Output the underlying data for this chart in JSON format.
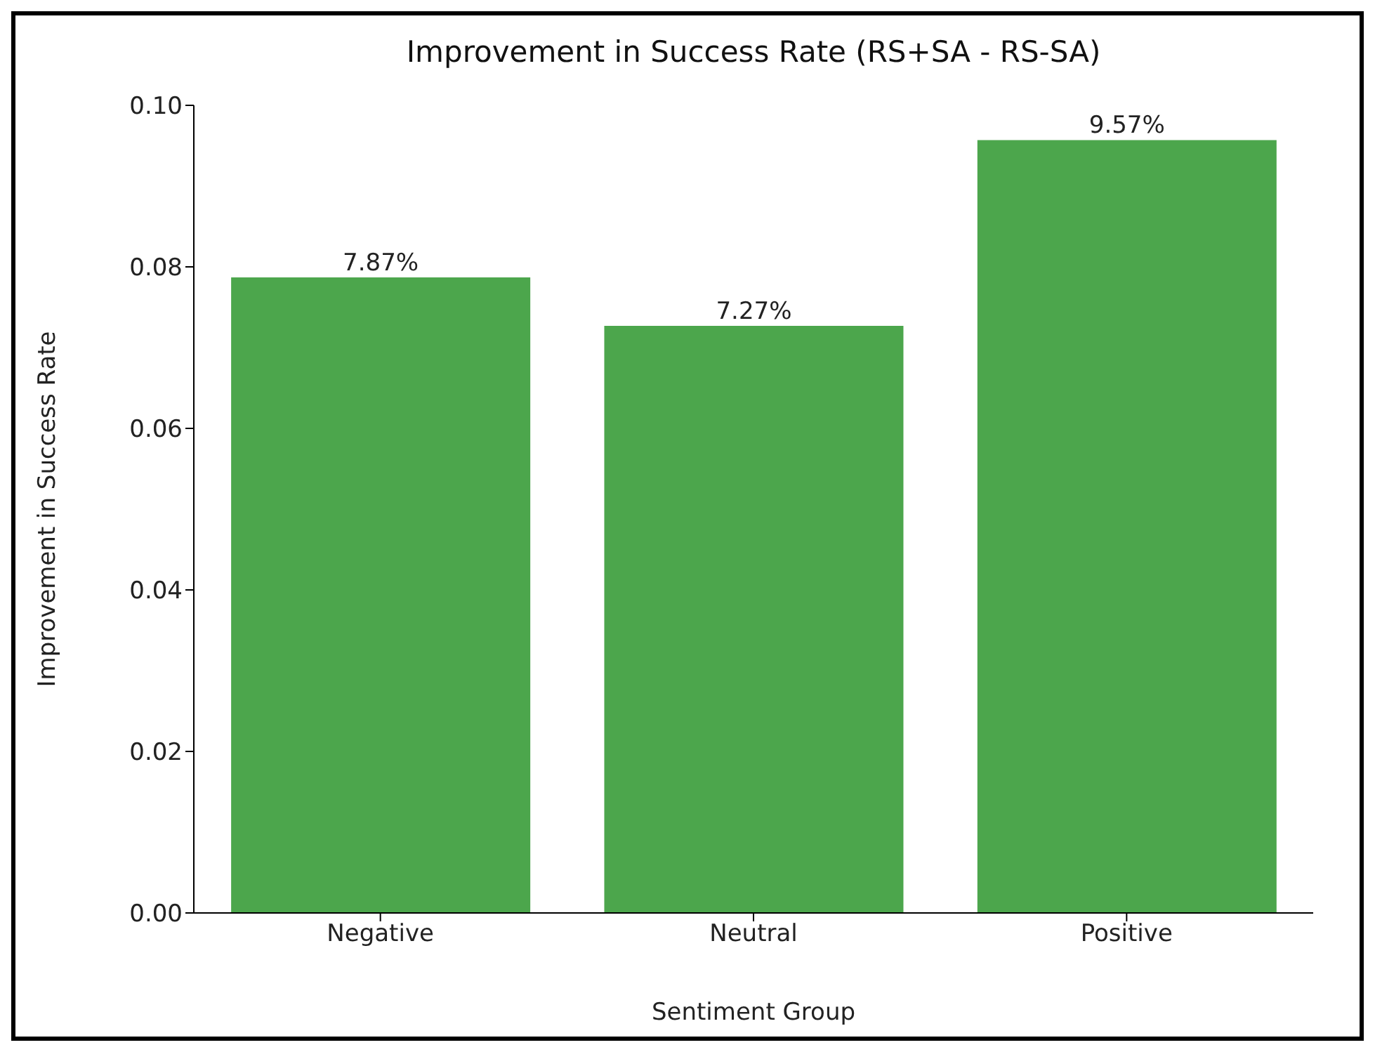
{
  "chart_data": {
    "type": "bar",
    "title": "Improvement in Success Rate (RS+SA - RS-SA)",
    "xlabel": "Sentiment Group",
    "ylabel": "Improvement in Success Rate",
    "categories": [
      "Negative",
      "Neutral",
      "Positive"
    ],
    "values": [
      0.0787,
      0.0727,
      0.0957
    ],
    "value_labels": [
      "7.87%",
      "7.27%",
      "9.57%"
    ],
    "color": "#4ca64c",
    "ylim": [
      0,
      0.1
    ],
    "yticks": [
      {
        "value": 0,
        "label": "0.00"
      },
      {
        "value": 0.02,
        "label": "0.02"
      },
      {
        "value": 0.04,
        "label": "0.04"
      },
      {
        "value": 0.06,
        "label": "0.06"
      },
      {
        "value": 0.08,
        "label": "0.08"
      },
      {
        "value": 0.1,
        "label": "0.10"
      }
    ],
    "grid": false,
    "legend": false
  }
}
